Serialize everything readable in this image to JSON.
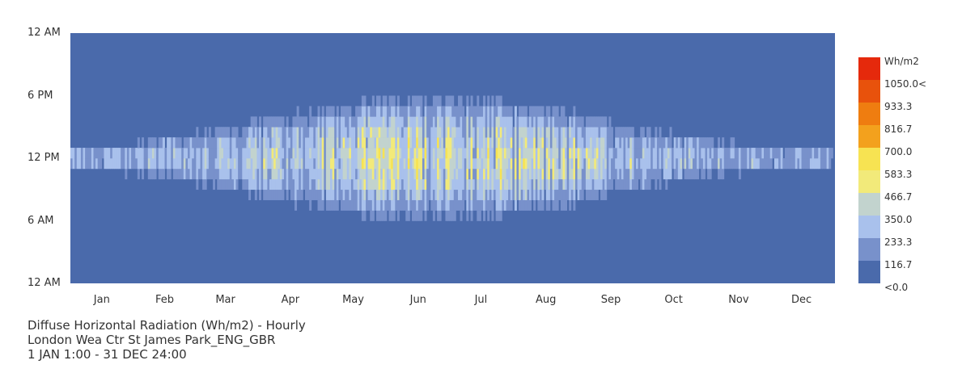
{
  "chart_data": {
    "type": "heatmap",
    "title": "Diffuse Horizontal Radiation (Wh/m2) - Hourly",
    "subtitle": "London Wea Ctr St James Park_ENG_GBR",
    "period": "1 JAN 1:00 - 31 DEC 24:00",
    "unit": "Wh/m2",
    "x_axis": {
      "range": [
        1,
        365
      ],
      "tick_labels": [
        "Jan",
        "Feb",
        "Mar",
        "Apr",
        "May",
        "Jun",
        "Jul",
        "Aug",
        "Sep",
        "Oct",
        "Nov",
        "Dec"
      ],
      "tick_days": [
        15,
        45,
        74,
        105,
        135,
        166,
        196,
        227,
        258,
        288,
        319,
        349
      ]
    },
    "y_axis": {
      "range": [
        0,
        24
      ],
      "tick_labels": [
        "12 AM",
        "6 AM",
        "12 PM",
        "6 PM",
        "12 AM"
      ],
      "tick_hours": [
        0,
        6,
        12,
        18,
        24
      ]
    },
    "legend": {
      "position": "right",
      "labels": [
        "Wh/m2",
        "1050.0<",
        "933.3",
        "816.7",
        "700.0",
        "583.3",
        "466.7",
        "350.0",
        "233.3",
        "116.7",
        "<0.0"
      ],
      "bins": [
        0,
        116.7,
        233.3,
        350.0,
        466.7,
        583.3,
        700.0,
        816.7,
        933.3,
        1050.0
      ],
      "colors": [
        "#4a6aab",
        "#7891cb",
        "#a9c1ec",
        "#c2d3ce",
        "#f2ea7a",
        "#f7e352",
        "#f3a11d",
        "#ef7d10",
        "#e8520c",
        "#e5290c"
      ]
    },
    "profile_estimate": {
      "hours": [
        0,
        1,
        2,
        3,
        4,
        5,
        6,
        7,
        8,
        9,
        10,
        11,
        12,
        13,
        14,
        15,
        16,
        17,
        18,
        19,
        20,
        21,
        22,
        23
      ],
      "daily_peak_by_month": {
        "months": [
          "Jan",
          "Feb",
          "Mar",
          "Apr",
          "May",
          "Jun",
          "Jul",
          "Aug",
          "Sep",
          "Oct",
          "Nov",
          "Dec"
        ],
        "peak_values": [
          300,
          330,
          380,
          430,
          460,
          490,
          450,
          420,
          370,
          320,
          300,
          280
        ]
      }
    },
    "grid": false
  }
}
